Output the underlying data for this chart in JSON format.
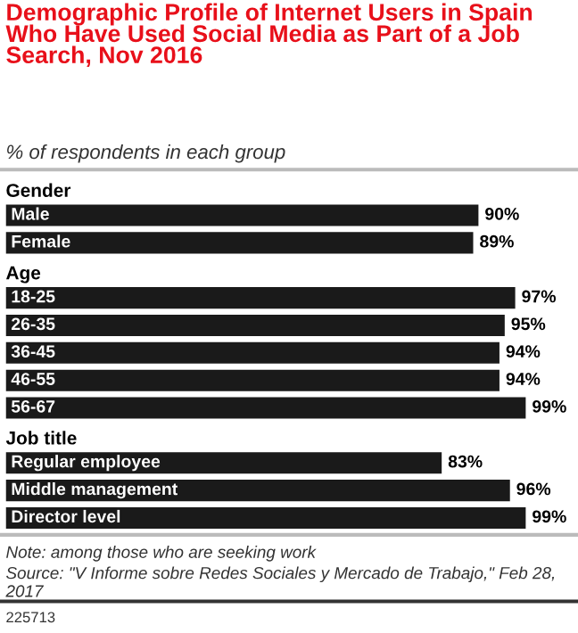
{
  "chart_data": {
    "type": "bar",
    "orientation": "horizontal",
    "title": "Demographic Profile of Internet Users in Spain Who Have Used Social Media as Part of a Job Search, Nov 2016",
    "subtitle": "% of respondents in each group",
    "categories": [
      "Gender",
      "Male",
      "Female",
      "Age",
      "18-25",
      "26-35",
      "36-45",
      "46-55",
      "56-67",
      "Job title",
      "Regular employee",
      "Middle management",
      "Director level"
    ],
    "values": [
      null,
      90,
      89,
      null,
      97,
      95,
      94,
      94,
      99,
      null,
      83,
      96,
      99
    ],
    "value_labels": [
      null,
      "90%",
      "89%",
      null,
      "97%",
      "95%",
      "94%",
      "94%",
      "99%",
      null,
      "83%",
      "96%",
      "99%"
    ],
    "color": "#1a1a1a",
    "annotations": [
      "Note: among those who are seeking work",
      "Source: \"V Informe sobre Redes Sociales y Mercado de Trabajo,\" Feb 28, 2017",
      "225713"
    ]
  }
}
